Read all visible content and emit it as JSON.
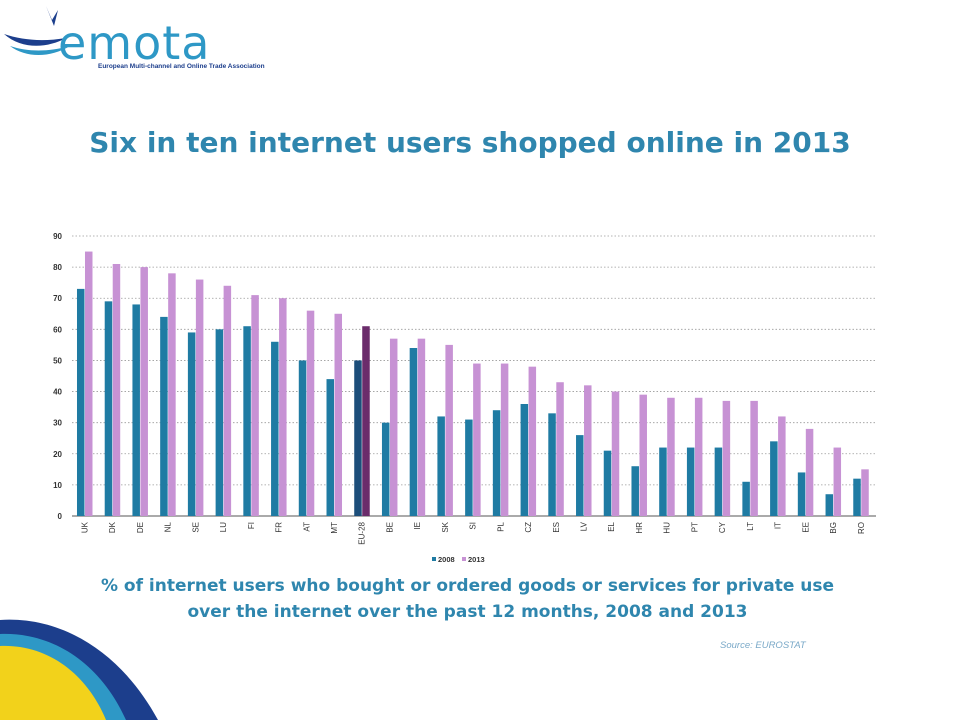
{
  "logo": {
    "wordmark": "emota",
    "tagline": "European Multi-channel and Online Trade Association",
    "colors": {
      "wordmark": "#2e98c6",
      "swoosh": "#1c3e8c",
      "accent": "#f2d21b"
    }
  },
  "title": "Six in ten internet users shopped online in 2013",
  "subtitle_line1": "% of internet users who bought or ordered goods or services for private use",
  "subtitle_line2": "over the internet over the past 12 months, 2008 and 2013",
  "source": "Source: EUROSTAT",
  "chart_data": {
    "type": "bar",
    "categories": [
      "UK",
      "DK",
      "DE",
      "NL",
      "SE",
      "LU",
      "FI",
      "FR",
      "AT",
      "MT",
      "EU-28",
      "BE",
      "IE",
      "SK",
      "SI",
      "PL",
      "CZ",
      "ES",
      "LV",
      "EL",
      "HR",
      "HU",
      "PT",
      "CY",
      "LT",
      "IT",
      "EE",
      "BG",
      "RO"
    ],
    "series": [
      {
        "name": "2008",
        "color": "#1f7ba3",
        "values": [
          73,
          69,
          68,
          64,
          59,
          60,
          61,
          56,
          50,
          44,
          50,
          30,
          54,
          32,
          31,
          34,
          36,
          33,
          26,
          21,
          16,
          22,
          22,
          22,
          11,
          24,
          14,
          7,
          12
        ]
      },
      {
        "name": "2013",
        "color": "#c792d4",
        "values": [
          85,
          81,
          80,
          78,
          76,
          74,
          71,
          70,
          66,
          65,
          61,
          57,
          57,
          55,
          49,
          49,
          48,
          43,
          42,
          40,
          39,
          38,
          38,
          37,
          37,
          32,
          28,
          22,
          15
        ]
      }
    ],
    "highlight": {
      "category": "EU-28",
      "colors": {
        "2008": "#1c4e7a",
        "2013": "#6b2c6b"
      }
    },
    "ylim": [
      0,
      90
    ],
    "yticks": [
      0,
      10,
      20,
      30,
      40,
      50,
      60,
      70,
      80,
      90
    ],
    "grid": true,
    "legend_position": "bottom",
    "xlabel": "",
    "ylabel": ""
  }
}
